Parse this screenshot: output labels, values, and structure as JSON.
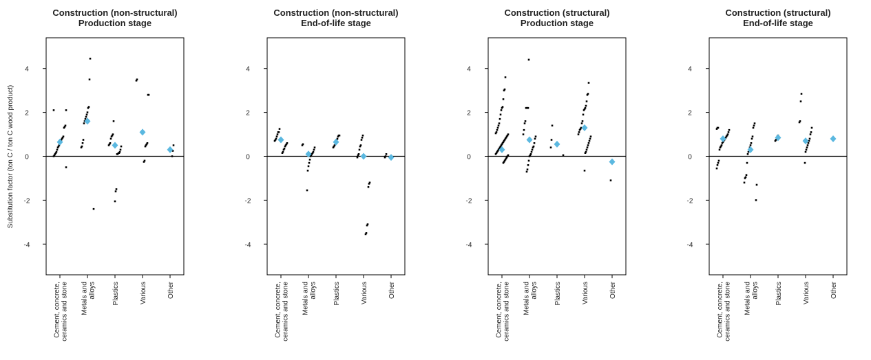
{
  "chart_data": {
    "type": "scatter",
    "ylabel": "Substitution factor (ton C / ton C wood product)",
    "ylim": [
      -5.4,
      5.4
    ],
    "yticks": [
      -4,
      -2,
      0,
      2,
      4
    ],
    "reference_line": 0,
    "colors": {
      "points": "#000000",
      "mean_marker": "#5bb8e0",
      "zero_line": "#000000",
      "frame": "#000000"
    },
    "categories": [
      [
        "Cement, concrete,",
        "ceramics and stone"
      ],
      [
        "Metals and",
        "alloys"
      ],
      [
        "Plastics"
      ],
      [
        "Various"
      ],
      [
        "Other"
      ]
    ],
    "panels": [
      {
        "title_lines": [
          "Construction (non-structural)",
          "Production stage"
        ],
        "groups": [
          {
            "mean": 0.65,
            "points": [
              2.1,
              2.1,
              1.4,
              1.35,
              1.3,
              0.9,
              0.85,
              0.8,
              0.75,
              0.7,
              0.6,
              0.5,
              0.45,
              0.4,
              0.3,
              0.2,
              0.15,
              0.1,
              0.05,
              0.0,
              -0.5
            ]
          },
          {
            "mean": 1.6,
            "points": [
              4.45,
              3.5,
              2.25,
              2.2,
              2.0,
              1.9,
              1.8,
              1.7,
              1.6,
              1.5,
              0.75,
              0.6,
              0.45,
              0.4,
              -2.4
            ]
          },
          {
            "mean": 0.5,
            "points": [
              1.6,
              1.0,
              0.95,
              0.9,
              0.8,
              0.6,
              0.55,
              0.5,
              0.45,
              0.3,
              0.2,
              0.15,
              0.15,
              0.1,
              0.1,
              -1.5,
              -1.6,
              -2.05
            ]
          },
          {
            "mean": 1.1,
            "points": [
              3.5,
              3.45,
              2.8,
              2.8,
              0.6,
              0.55,
              0.5,
              0.45,
              -0.2,
              -0.25
            ]
          },
          {
            "mean": 0.3,
            "points": [
              0.5,
              0.25,
              0.0
            ]
          }
        ]
      },
      {
        "title_lines": [
          "Construction (non-structural)",
          "End-of-life stage"
        ],
        "groups": [
          {
            "mean": 0.75,
            "points": [
              1.25,
              1.1,
              1.1,
              1.0,
              0.9,
              0.8,
              0.75,
              0.7,
              0.6,
              0.55,
              0.5,
              0.45,
              0.35,
              0.3,
              0.2,
              0.15
            ]
          },
          {
            "mean": 0.1,
            "points": [
              0.55,
              0.5,
              0.4,
              0.3,
              0.2,
              0.15,
              0.1,
              0.05,
              0.0,
              -0.15,
              -0.3,
              -0.45,
              -0.65,
              -1.55
            ]
          },
          {
            "mean": 0.65,
            "points": [
              0.95,
              0.95,
              0.9,
              0.8,
              0.75,
              0.7,
              0.6,
              0.5,
              0.45,
              0.4
            ]
          },
          {
            "mean": 0.0,
            "points": [
              0.95,
              0.85,
              0.75,
              0.5,
              0.45,
              0.3,
              0.1,
              0.05,
              -0.05,
              -1.2,
              -1.25,
              -1.4,
              -3.1,
              -3.15,
              -3.5,
              -3.55
            ]
          },
          {
            "mean": -0.05,
            "points": [
              0.1,
              0.0,
              -0.05
            ]
          }
        ]
      },
      {
        "title_lines": [
          "Construction (structural)",
          "Production stage"
        ],
        "groups": [
          {
            "mean": 0.3,
            "points": [
              3.6,
              3.05,
              3.0,
              2.6,
              2.25,
              2.2,
              2.1,
              1.9,
              1.7,
              1.5,
              1.4,
              1.3,
              1.2,
              1.1,
              1.05,
              1.0,
              0.95,
              0.9,
              0.85,
              0.8,
              0.75,
              0.7,
              0.65,
              0.6,
              0.55,
              0.5,
              0.45,
              0.4,
              0.35,
              0.3,
              0.25,
              0.2,
              0.15,
              0.1,
              0.05,
              0.0,
              -0.05,
              -0.1,
              -0.15,
              -0.2,
              -0.25,
              -0.3
            ]
          },
          {
            "mean": 0.75,
            "points": [
              4.4,
              2.2,
              2.2,
              2.2,
              2.2,
              1.6,
              1.5,
              1.2,
              1.0,
              0.9,
              0.8,
              0.6,
              0.45,
              0.4,
              0.3,
              0.2,
              0.1,
              0.05,
              0.0,
              -0.2,
              -0.4,
              -0.6,
              -0.7
            ]
          },
          {
            "mean": 0.55,
            "points": [
              1.4,
              0.75,
              0.4,
              0.05
            ]
          },
          {
            "mean": 1.3,
            "points": [
              3.35,
              2.85,
              2.8,
              2.5,
              2.3,
              2.2,
              2.15,
              2.1,
              1.9,
              1.6,
              1.5,
              1.3,
              1.25,
              1.2,
              1.1,
              1.0,
              0.9,
              0.8,
              0.7,
              0.6,
              0.5,
              0.4,
              0.3,
              0.2,
              0.15,
              -0.65
            ]
          },
          {
            "mean": -0.25,
            "points": [
              -0.2,
              -0.25,
              -1.1
            ]
          }
        ]
      },
      {
        "title_lines": [
          "Construction (structural)",
          "End-of-life stage"
        ],
        "groups": [
          {
            "mean": 0.8,
            "points": [
              1.3,
              1.3,
              1.25,
              1.2,
              1.1,
              1.0,
              0.95,
              0.9,
              0.85,
              0.8,
              0.75,
              0.7,
              0.65,
              0.6,
              0.5,
              0.45,
              0.4,
              0.3,
              -0.2,
              -0.3,
              -0.4,
              -0.55
            ]
          },
          {
            "mean": 0.3,
            "points": [
              1.5,
              1.4,
              1.3,
              0.9,
              0.8,
              0.6,
              0.5,
              0.4,
              0.3,
              0.2,
              0.1,
              -0.3,
              -0.85,
              -0.95,
              -1.0,
              -1.2,
              -1.3,
              -2.0
            ]
          },
          {
            "mean": 0.85,
            "points": [
              0.95,
              0.9,
              0.85,
              0.75,
              0.7
            ]
          },
          {
            "mean": 0.7,
            "points": [
              2.85,
              2.5,
              1.6,
              1.55,
              1.3,
              1.1,
              1.0,
              0.8,
              0.7,
              0.6,
              0.5,
              0.4,
              0.3,
              0.2,
              -0.3
            ]
          },
          {
            "mean": 0.8,
            "points": []
          }
        ]
      }
    ]
  }
}
